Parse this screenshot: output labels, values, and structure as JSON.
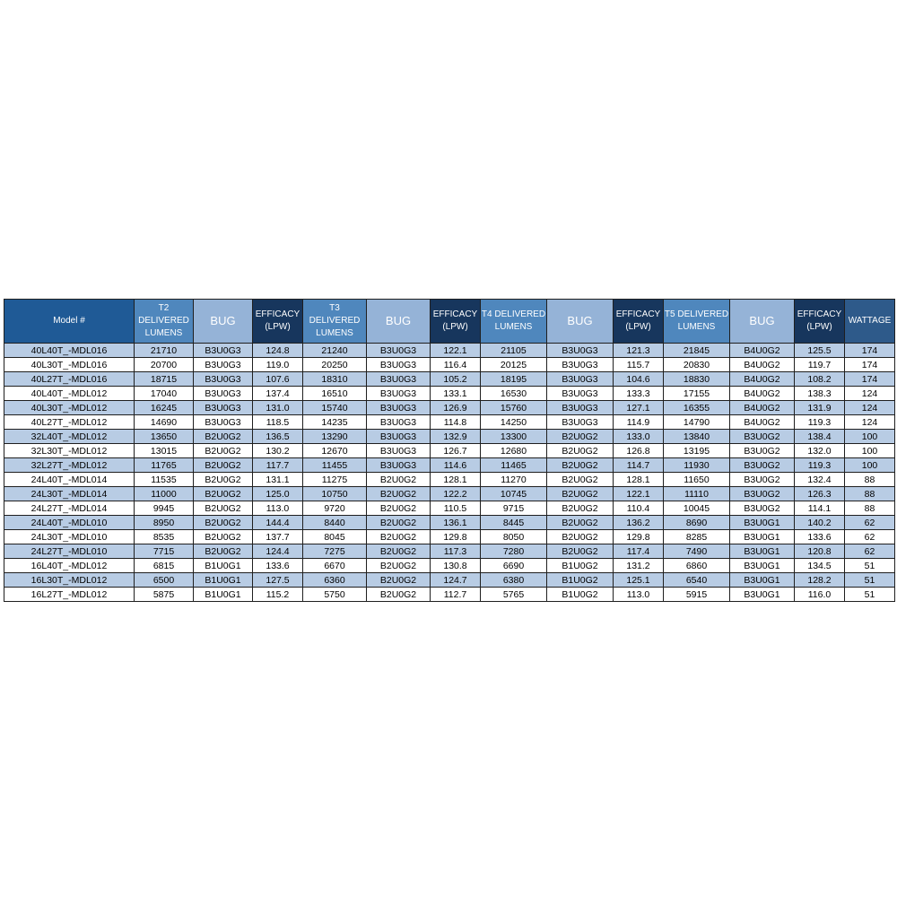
{
  "headers": [
    {
      "label": "Model #",
      "kind": "model"
    },
    {
      "label": "T2\nDELIVERED\nLUMENS",
      "kind": "lum"
    },
    {
      "label": "BUG",
      "kind": "bug"
    },
    {
      "label": "EFFICACY\n(LPW)",
      "kind": "eff"
    },
    {
      "label": "T3\nDELIVERED\nLUMENS",
      "kind": "lum"
    },
    {
      "label": "BUG",
      "kind": "bug"
    },
    {
      "label": "EFFICACY\n(LPW)",
      "kind": "eff"
    },
    {
      "label": "T4 DELIVERED\nLUMENS",
      "kind": "lum"
    },
    {
      "label": "BUG",
      "kind": "bug"
    },
    {
      "label": "EFFICACY\n(LPW)",
      "kind": "eff"
    },
    {
      "label": "T5 DELIVERED\nLUMENS",
      "kind": "lum"
    },
    {
      "label": "BUG",
      "kind": "bug"
    },
    {
      "label": "EFFICACY\n(LPW)",
      "kind": "eff"
    },
    {
      "label": "WATTAGE",
      "kind": "watt"
    }
  ],
  "rows": [
    [
      "40L40T_-MDL016",
      "21710",
      "B3U0G3",
      "124.8",
      "21240",
      "B3U0G3",
      "122.1",
      "21105",
      "B3U0G3",
      "121.3",
      "21845",
      "B4U0G2",
      "125.5",
      "174"
    ],
    [
      "40L30T_-MDL016",
      "20700",
      "B3U0G3",
      "119.0",
      "20250",
      "B3U0G3",
      "116.4",
      "20125",
      "B3U0G3",
      "115.7",
      "20830",
      "B4U0G2",
      "119.7",
      "174"
    ],
    [
      "40L27T_-MDL016",
      "18715",
      "B3U0G3",
      "107.6",
      "18310",
      "B3U0G3",
      "105.2",
      "18195",
      "B3U0G3",
      "104.6",
      "18830",
      "B4U0G2",
      "108.2",
      "174"
    ],
    [
      "40L40T_-MDL012",
      "17040",
      "B3U0G3",
      "137.4",
      "16510",
      "B3U0G3",
      "133.1",
      "16530",
      "B3U0G3",
      "133.3",
      "17155",
      "B4U0G2",
      "138.3",
      "124"
    ],
    [
      "40L30T_-MDL012",
      "16245",
      "B3U0G3",
      "131.0",
      "15740",
      "B3U0G3",
      "126.9",
      "15760",
      "B3U0G3",
      "127.1",
      "16355",
      "B4U0G2",
      "131.9",
      "124"
    ],
    [
      "40L27T_-MDL012",
      "14690",
      "B3U0G3",
      "118.5",
      "14235",
      "B3U0G3",
      "114.8",
      "14250",
      "B3U0G3",
      "114.9",
      "14790",
      "B4U0G2",
      "119.3",
      "124"
    ],
    [
      "32L40T_-MDL012",
      "13650",
      "B2U0G2",
      "136.5",
      "13290",
      "B3U0G3",
      "132.9",
      "13300",
      "B2U0G2",
      "133.0",
      "13840",
      "B3U0G2",
      "138.4",
      "100"
    ],
    [
      "32L30T_-MDL012",
      "13015",
      "B2U0G2",
      "130.2",
      "12670",
      "B3U0G3",
      "126.7",
      "12680",
      "B2U0G2",
      "126.8",
      "13195",
      "B3U0G2",
      "132.0",
      "100"
    ],
    [
      "32L27T_-MDL012",
      "11765",
      "B2U0G2",
      "117.7",
      "11455",
      "B3U0G3",
      "114.6",
      "11465",
      "B2U0G2",
      "114.7",
      "11930",
      "B3U0G2",
      "119.3",
      "100"
    ],
    [
      "24L40T_-MDL014",
      "11535",
      "B2U0G2",
      "131.1",
      "11275",
      "B2U0G2",
      "128.1",
      "11270",
      "B2U0G2",
      "128.1",
      "11650",
      "B3U0G2",
      "132.4",
      "88"
    ],
    [
      "24L30T_-MDL014",
      "11000",
      "B2U0G2",
      "125.0",
      "10750",
      "B2U0G2",
      "122.2",
      "10745",
      "B2U0G2",
      "122.1",
      "11110",
      "B3U0G2",
      "126.3",
      "88"
    ],
    [
      "24L27T_-MDL014",
      "9945",
      "B2U0G2",
      "113.0",
      "9720",
      "B2U0G2",
      "110.5",
      "9715",
      "B2U0G2",
      "110.4",
      "10045",
      "B3U0G2",
      "114.1",
      "88"
    ],
    [
      "24L40T_-MDL010",
      "8950",
      "B2U0G2",
      "144.4",
      "8440",
      "B2U0G2",
      "136.1",
      "8445",
      "B2U0G2",
      "136.2",
      "8690",
      "B3U0G1",
      "140.2",
      "62"
    ],
    [
      "24L30T_-MDL010",
      "8535",
      "B2U0G2",
      "137.7",
      "8045",
      "B2U0G2",
      "129.8",
      "8050",
      "B2U0G2",
      "129.8",
      "8285",
      "B3U0G1",
      "133.6",
      "62"
    ],
    [
      "24L27T_-MDL010",
      "7715",
      "B2U0G2",
      "124.4",
      "7275",
      "B2U0G2",
      "117.3",
      "7280",
      "B2U0G2",
      "117.4",
      "7490",
      "B3U0G1",
      "120.8",
      "62"
    ],
    [
      "16L40T_-MDL012",
      "6815",
      "B1U0G1",
      "133.6",
      "6670",
      "B2U0G2",
      "130.8",
      "6690",
      "B1U0G2",
      "131.2",
      "6860",
      "B3U0G1",
      "134.5",
      "51"
    ],
    [
      "16L30T_-MDL012",
      "6500",
      "B1U0G1",
      "127.5",
      "6360",
      "B2U0G2",
      "124.7",
      "6380",
      "B1U0G2",
      "125.1",
      "6540",
      "B3U0G1",
      "128.2",
      "51"
    ],
    [
      "16L27T_-MDL012",
      "5875",
      "B1U0G1",
      "115.2",
      "5750",
      "B2U0G2",
      "112.7",
      "5765",
      "B1U0G2",
      "113.0",
      "5915",
      "B3U0G1",
      "116.0",
      "51"
    ]
  ],
  "colors": {
    "model_header": "#1f5a96",
    "lumens_header": "#4f87bd",
    "bug_header": "#95b3d7",
    "efficacy_header": "#17365d",
    "wattage_header": "#2e5a8a",
    "row_shade": "#b8cce4",
    "row_plain": "#ffffff"
  }
}
